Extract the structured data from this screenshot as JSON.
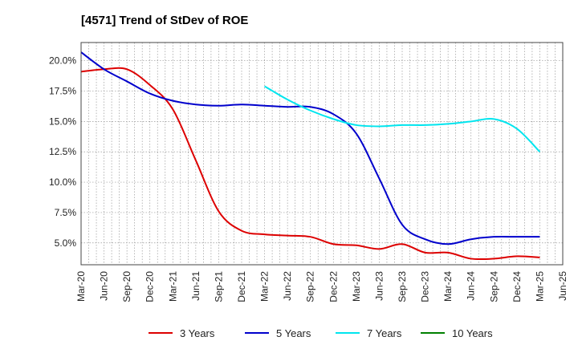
{
  "chart_data": {
    "type": "line",
    "title": "[4571]  Trend of StDev of ROE",
    "xlabel": "",
    "ylabel": "",
    "x": [
      "Mar-20",
      "Jun-20",
      "Sep-20",
      "Dec-20",
      "Mar-21",
      "Jun-21",
      "Sep-21",
      "Dec-21",
      "Mar-22",
      "Jun-22",
      "Sep-22",
      "Dec-22",
      "Mar-23",
      "Jun-23",
      "Sep-23",
      "Dec-23",
      "Mar-24",
      "Jun-24",
      "Sep-24",
      "Dec-24",
      "Mar-25",
      "Jun-25"
    ],
    "y_ticks": [
      "5.0%",
      "7.5%",
      "10.0%",
      "12.5%",
      "15.0%",
      "17.5%",
      "20.0%"
    ],
    "y_tick_values": [
      5.0,
      7.5,
      10.0,
      12.5,
      15.0,
      17.5,
      20.0
    ],
    "ylim": [
      3.2,
      21.5
    ],
    "grid": true,
    "legend_position": "bottom",
    "series": [
      {
        "name": "3 Years",
        "color": "#dd0000",
        "values": [
          19.1,
          19.3,
          19.3,
          18.0,
          16.0,
          11.8,
          7.6,
          6.0,
          5.7,
          5.6,
          5.5,
          4.9,
          4.8,
          4.5,
          4.9,
          4.2,
          4.2,
          3.7,
          3.7,
          3.9,
          3.8,
          null
        ]
      },
      {
        "name": "5 Years",
        "color": "#0000cc",
        "values": [
          20.7,
          19.3,
          18.3,
          17.3,
          16.7,
          16.4,
          16.3,
          16.4,
          16.3,
          16.2,
          16.2,
          15.6,
          14.0,
          10.3,
          6.5,
          5.3,
          4.9,
          5.3,
          5.5,
          5.5,
          5.5,
          null
        ]
      },
      {
        "name": "7 Years",
        "color": "#00e5ee",
        "values": [
          null,
          null,
          null,
          null,
          null,
          null,
          null,
          null,
          17.9,
          16.8,
          15.9,
          15.2,
          14.7,
          14.6,
          14.7,
          14.7,
          14.8,
          15.0,
          15.2,
          14.4,
          12.5,
          null
        ]
      },
      {
        "name": "10 Years",
        "color": "#008000",
        "values": [
          null,
          null,
          null,
          null,
          null,
          null,
          null,
          null,
          null,
          null,
          null,
          null,
          null,
          null,
          null,
          null,
          null,
          null,
          null,
          null,
          null,
          null
        ]
      }
    ]
  }
}
